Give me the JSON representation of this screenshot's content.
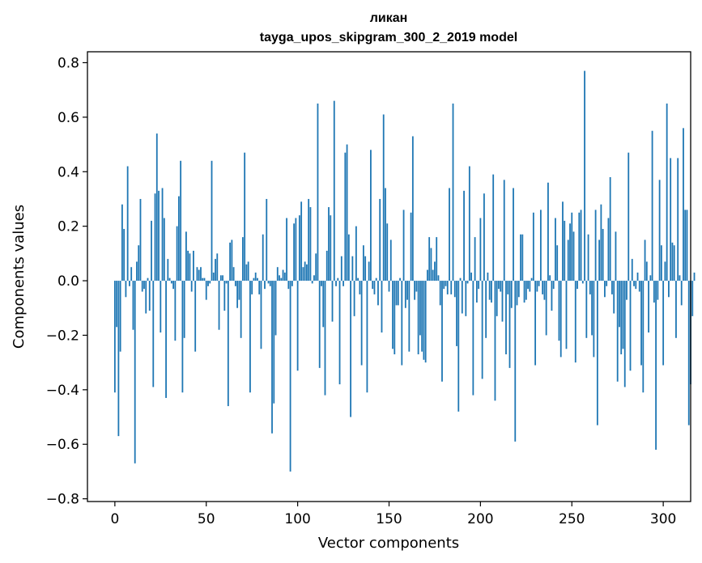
{
  "chart_data": {
    "type": "bar",
    "title": "ликан",
    "subtitle": "tayga_upos_skipgram_300_2_2019 model",
    "xlabel": "Vector components",
    "ylabel": "Components values",
    "xlim": [
      -15,
      315
    ],
    "ylim": [
      -0.81,
      0.84
    ],
    "xticks": [
      0,
      50,
      100,
      150,
      200,
      250,
      300
    ],
    "yticks": [
      -0.8,
      -0.6,
      -0.4,
      -0.2,
      0.0,
      0.2,
      0.4,
      0.6,
      0.8
    ],
    "ytick_labels": [
      "−0.8",
      "−0.6",
      "−0.4",
      "−0.2",
      "0.0",
      "0.2",
      "0.4",
      "0.6",
      "0.8"
    ],
    "bar_color": "#1f77b4",
    "values": [
      -0.41,
      -0.17,
      -0.57,
      -0.26,
      0.28,
      0.19,
      -0.06,
      0.42,
      -0.02,
      0.05,
      -0.18,
      -0.67,
      0.07,
      0.13,
      0.3,
      -0.04,
      -0.03,
      -0.12,
      0.01,
      -0.11,
      0.22,
      -0.39,
      0.32,
      0.54,
      0.33,
      -0.19,
      0.34,
      0.23,
      -0.43,
      0.08,
      0.01,
      -0.01,
      -0.03,
      -0.22,
      0.2,
      0.31,
      0.44,
      -0.41,
      -0.21,
      0.18,
      0.11,
      0.1,
      -0.04,
      0.11,
      -0.26,
      0.05,
      0.04,
      0.05,
      0.01,
      0.01,
      -0.07,
      -0.02,
      -0.01,
      0.44,
      0.03,
      0.08,
      0.1,
      -0.18,
      0.02,
      0.02,
      -0.11,
      -0.01,
      -0.46,
      0.14,
      0.15,
      0.05,
      -0.02,
      -0.1,
      -0.07,
      -0.21,
      0.16,
      0.47,
      0.06,
      0.07,
      -0.41,
      -0.05,
      0.01,
      0.03,
      0.01,
      -0.05,
      -0.25,
      0.17,
      -0.03,
      0.3,
      -0.01,
      -0.02,
      -0.56,
      -0.45,
      -0.2,
      0.05,
      0.02,
      0.01,
      0.04,
      0.03,
      0.23,
      -0.03,
      -0.7,
      -0.02,
      0.21,
      0.23,
      -0.33,
      0.24,
      0.29,
      0.05,
      0.07,
      0.06,
      0.3,
      0.27,
      -0.01,
      0.02,
      0.1,
      0.65,
      -0.32,
      -0.02,
      -0.17,
      -0.42,
      0.11,
      0.27,
      0.24,
      -0.15,
      0.66,
      -0.02,
      0.01,
      -0.38,
      0.09,
      -0.02,
      0.47,
      0.5,
      0.17,
      -0.5,
      0.09,
      -0.13,
      0.2,
      0.01,
      -0.05,
      -0.31,
      0.13,
      0.09,
      -0.41,
      0.07,
      0.48,
      -0.03,
      -0.05,
      0.01,
      -0.09,
      0.3,
      -0.19,
      0.61,
      0.34,
      0.21,
      -0.04,
      0.15,
      -0.25,
      -0.27,
      -0.09,
      -0.09,
      0.01,
      -0.31,
      0.26,
      -0.1,
      -0.07,
      -0.26,
      0.25,
      0.53,
      -0.07,
      -0.04,
      -0.27,
      -0.2,
      -0.26,
      -0.29,
      -0.3,
      0.04,
      0.16,
      0.12,
      0.04,
      0.07,
      0.16,
      0.02,
      -0.09,
      -0.37,
      -0.03,
      -0.02,
      -0.05,
      0.34,
      -0.05,
      0.65,
      -0.06,
      -0.24,
      -0.48,
      0.01,
      -0.12,
      0.33,
      -0.13,
      -0.01,
      0.42,
      0.03,
      -0.42,
      0.16,
      -0.08,
      -0.03,
      0.23,
      -0.36,
      0.32,
      -0.21,
      0.03,
      -0.07,
      -0.08,
      0.39,
      -0.44,
      -0.13,
      -0.03,
      -0.04,
      -0.15,
      0.37,
      -0.27,
      -0.05,
      -0.32,
      -0.1,
      0.34,
      -0.59,
      -0.09,
      -0.06,
      0.17,
      0.17,
      -0.08,
      -0.07,
      -0.03,
      -0.04,
      0.01,
      0.25,
      -0.31,
      -0.04,
      -0.02,
      0.26,
      -0.05,
      -0.07,
      -0.2,
      0.36,
      0.02,
      -0.11,
      -0.03,
      0.23,
      0.13,
      -0.22,
      -0.28,
      0.29,
      0.22,
      -0.25,
      0.15,
      0.21,
      0.25,
      0.18,
      -0.3,
      -0.03,
      0.25,
      0.26,
      -0.01,
      0.77,
      -0.21,
      0.17,
      -0.05,
      -0.2,
      -0.28,
      0.26,
      -0.53,
      0.15,
      0.28,
      0.19,
      -0.06,
      -0.02,
      0.23,
      0.38,
      -0.05,
      -0.12,
      0.18,
      -0.37,
      -0.17,
      -0.27,
      -0.25,
      -0.39,
      -0.07,
      0.47,
      -0.33,
      0.08,
      -0.02,
      -0.03,
      0.03,
      -0.04,
      -0.31,
      -0.41,
      0.15,
      0.07,
      -0.19,
      0.02,
      0.55,
      -0.08,
      -0.62,
      -0.07,
      0.37,
      0.13,
      -0.31,
      0.07,
      0.65,
      -0.06,
      0.45,
      0.14,
      0.13,
      -0.21,
      0.45,
      0.02,
      -0.09,
      0.56,
      0.26,
      0.26,
      -0.53,
      -0.38,
      -0.13,
      0.03
    ]
  }
}
